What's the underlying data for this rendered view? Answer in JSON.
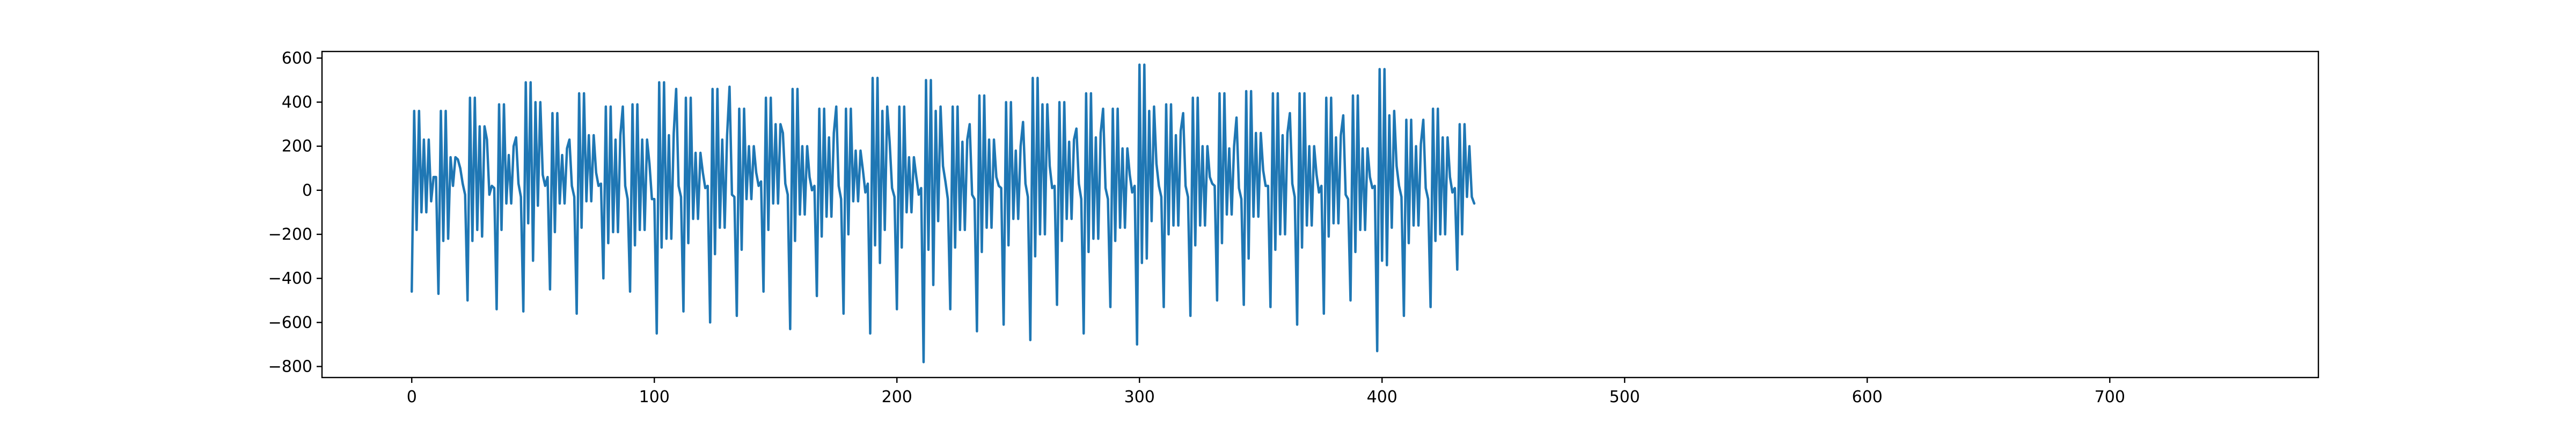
{
  "chart_data": {
    "type": "line",
    "title": "",
    "xlabel": "",
    "ylabel": "",
    "xlim": [
      -37,
      786
    ],
    "ylim": [
      -850,
      630
    ],
    "x_ticks": [
      0,
      100,
      200,
      300,
      400,
      500,
      600,
      700
    ],
    "y_ticks": [
      -800,
      -600,
      -400,
      -200,
      0,
      200,
      400,
      600
    ],
    "x_tick_labels": [
      "0",
      "100",
      "200",
      "300",
      "400",
      "500",
      "600",
      "700"
    ],
    "y_tick_labels": [
      "−800",
      "−600",
      "−400",
      "−200",
      "0",
      "200",
      "400",
      "600"
    ],
    "grid": false,
    "legend": "none",
    "series": [
      {
        "color": "#1f77b4",
        "x_start": 0,
        "x_step": 1,
        "values": [
          -460,
          360,
          -180,
          360,
          -100,
          230,
          -100,
          230,
          -50,
          60,
          60,
          -470,
          360,
          -230,
          360,
          -220,
          150,
          20,
          150,
          140,
          100,
          30,
          -20,
          -500,
          420,
          -230,
          420,
          -180,
          290,
          -210,
          290,
          230,
          -20,
          20,
          10,
          -540,
          390,
          -180,
          390,
          -60,
          160,
          -60,
          200,
          240,
          30,
          -30,
          -550,
          490,
          -150,
          490,
          -320,
          400,
          -70,
          400,
          70,
          20,
          60,
          -450,
          350,
          -190,
          350,
          -60,
          160,
          -60,
          190,
          230,
          20,
          -30,
          -560,
          440,
          -170,
          440,
          -50,
          250,
          -50,
          250,
          80,
          20,
          30,
          -400,
          380,
          -240,
          380,
          -190,
          230,
          -190,
          250,
          380,
          20,
          -40,
          -460,
          390,
          -250,
          390,
          -180,
          230,
          -180,
          230,
          120,
          -40,
          -40,
          -650,
          490,
          -260,
          490,
          -220,
          250,
          -220,
          260,
          460,
          20,
          -30,
          -550,
          420,
          -240,
          420,
          -130,
          170,
          -130,
          170,
          80,
          10,
          20,
          -600,
          460,
          -290,
          460,
          -170,
          230,
          -170,
          250,
          470,
          -20,
          -30,
          -570,
          370,
          -270,
          370,
          -40,
          200,
          -40,
          200,
          80,
          20,
          40,
          -460,
          420,
          -180,
          420,
          -60,
          300,
          -60,
          300,
          260,
          30,
          -20,
          -630,
          460,
          -230,
          460,
          -110,
          200,
          -110,
          200,
          60,
          0,
          20,
          -480,
          370,
          -210,
          370,
          -120,
          240,
          -120,
          260,
          380,
          20,
          -40,
          -560,
          370,
          -200,
          370,
          -50,
          180,
          -50,
          180,
          90,
          -10,
          30,
          -650,
          510,
          -250,
          510,
          -330,
          360,
          -180,
          380,
          220,
          10,
          -30,
          -540,
          380,
          -260,
          380,
          -100,
          150,
          -100,
          150,
          60,
          -20,
          10,
          -780,
          500,
          -270,
          500,
          -430,
          360,
          -140,
          380,
          110,
          40,
          -40,
          -540,
          380,
          -260,
          380,
          -180,
          220,
          -180,
          230,
          300,
          -20,
          -40,
          -640,
          430,
          -280,
          430,
          -170,
          230,
          -170,
          230,
          60,
          20,
          10,
          -610,
          400,
          -250,
          400,
          -130,
          180,
          -130,
          200,
          310,
          30,
          -30,
          -680,
          510,
          -300,
          510,
          -200,
          390,
          -200,
          390,
          110,
          10,
          20,
          -520,
          400,
          -230,
          400,
          -130,
          220,
          -130,
          230,
          280,
          30,
          -40,
          -650,
          440,
          -280,
          440,
          -220,
          240,
          -220,
          260,
          370,
          10,
          -40,
          -530,
          370,
          -230,
          370,
          -170,
          190,
          -170,
          190,
          70,
          -10,
          20,
          -700,
          570,
          -330,
          570,
          -310,
          360,
          -140,
          380,
          120,
          20,
          -30,
          -530,
          390,
          -200,
          390,
          -160,
          250,
          -160,
          270,
          350,
          20,
          -30,
          -570,
          420,
          -250,
          420,
          -160,
          200,
          -160,
          200,
          60,
          30,
          20,
          -500,
          440,
          -240,
          440,
          -110,
          190,
          -110,
          200,
          330,
          10,
          -40,
          -520,
          450,
          -310,
          450,
          -120,
          260,
          -120,
          260,
          90,
          20,
          20,
          -530,
          440,
          -270,
          440,
          -200,
          250,
          -200,
          260,
          350,
          30,
          -30,
          -610,
          440,
          -260,
          440,
          -160,
          200,
          -160,
          200,
          70,
          -10,
          20,
          -560,
          420,
          -210,
          420,
          -150,
          240,
          -150,
          250,
          340,
          -20,
          -40,
          -500,
          430,
          -280,
          430,
          -180,
          190,
          -180,
          190,
          60,
          10,
          20,
          -730,
          550,
          -320,
          550,
          -340,
          340,
          -170,
          360,
          110,
          20,
          -30,
          -570,
          320,
          -240,
          320,
          -160,
          200,
          -160,
          210,
          320,
          10,
          -40,
          -530,
          370,
          -230,
          370,
          -200,
          240,
          -200,
          240,
          60,
          -10,
          10,
          -360,
          300,
          -200,
          300,
          -30,
          200,
          -30,
          -60
        ]
      }
    ]
  }
}
